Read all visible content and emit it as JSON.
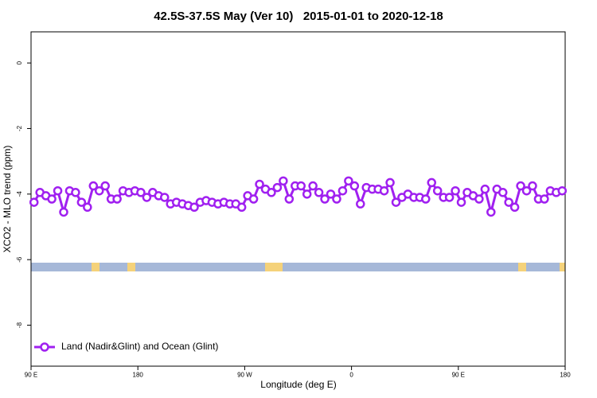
{
  "chart_data": {
    "type": "line",
    "title": "42.5S-37.5S May (Ver 10)   2015-01-01 to 2020-12-18",
    "x_label": "Longitude (deg E)",
    "y_label": "XCO2 - MLO trend (ppm)",
    "x": [
      92.5,
      97.5,
      102.5,
      107.5,
      112.5,
      117.5,
      122.5,
      127.5,
      132.5,
      137.5,
      142.5,
      147.5,
      152.5,
      157.5,
      162.5,
      167.5,
      172.5,
      177.5,
      182.5,
      187.5,
      192.5,
      197.5,
      202.5,
      207.5,
      212.5,
      217.5,
      222.5,
      227.5,
      232.5,
      237.5,
      242.5,
      247.5,
      252.5,
      257.5,
      262.5,
      267.5,
      272.5,
      277.5,
      282.5,
      287.5,
      292.5,
      297.5,
      302.5,
      307.5,
      312.5,
      317.5,
      322.5,
      327.5,
      332.5,
      337.5,
      342.5,
      347.5,
      352.5,
      357.5,
      362.5,
      367.5,
      372.5,
      377.5,
      382.5,
      387.5,
      392.5,
      397.5,
      402.5,
      407.5,
      412.5,
      417.5,
      422.5,
      427.5,
      432.5,
      437.5,
      442.5,
      447.5,
      452.5,
      457.5,
      462.5,
      467.5,
      472.5,
      477.5,
      482.5,
      487.5,
      492.5,
      497.5,
      502.5,
      507.5,
      512.5,
      517.5,
      522.5,
      527.5,
      532.5,
      537.5
    ],
    "series": [
      {
        "name": "Land (Nadir&Glint) and Ocean (Glint)",
        "color": "#a020f0",
        "values": [
          -4.25,
          -3.95,
          -4.05,
          -4.15,
          -3.9,
          -4.55,
          -3.9,
          -3.95,
          -4.25,
          -4.4,
          -3.75,
          -3.9,
          -3.75,
          -4.15,
          -4.15,
          -3.9,
          -3.95,
          -3.9,
          -3.95,
          -4.1,
          -3.95,
          -4.05,
          -4.1,
          -4.3,
          -4.25,
          -4.3,
          -4.35,
          -4.4,
          -4.25,
          -4.2,
          -4.25,
          -4.3,
          -4.25,
          -4.3,
          -4.3,
          -4.4,
          -4.05,
          -4.15,
          -3.7,
          -3.85,
          -3.95,
          -3.8,
          -3.6,
          -4.15,
          -3.75,
          -3.75,
          -4.0,
          -3.75,
          -3.95,
          -4.15,
          -4.0,
          -4.15,
          -3.9,
          -3.6,
          -3.75,
          -4.3,
          -3.8,
          -3.85,
          -3.85,
          -3.9,
          -3.65,
          -4.25,
          -4.1,
          -4.0,
          -4.1,
          -4.1,
          -4.15,
          -3.65,
          -3.9,
          -4.1,
          -4.1,
          -3.9,
          -4.25,
          -3.95,
          -4.05,
          -4.15,
          -3.85,
          -4.55,
          -3.85,
          -3.95,
          -4.25,
          -4.4,
          -3.75,
          -3.9,
          -3.75,
          -4.15,
          -4.15,
          -3.9,
          -3.95,
          -3.9
        ]
      }
    ],
    "xlim": [
      90,
      540
    ],
    "xticks": [
      {
        "value": 90,
        "label": "90 E"
      },
      {
        "value": 180,
        "label": "180"
      },
      {
        "value": 270,
        "label": "90 W"
      },
      {
        "value": 360,
        "label": "0"
      },
      {
        "value": 450,
        "label": "90 E"
      },
      {
        "value": 540,
        "label": "180"
      }
    ],
    "ylim": [
      -9.25,
      0.95
    ],
    "yticks": [
      0,
      -2,
      -4,
      -6,
      -8
    ],
    "legend": "bottom-left"
  }
}
